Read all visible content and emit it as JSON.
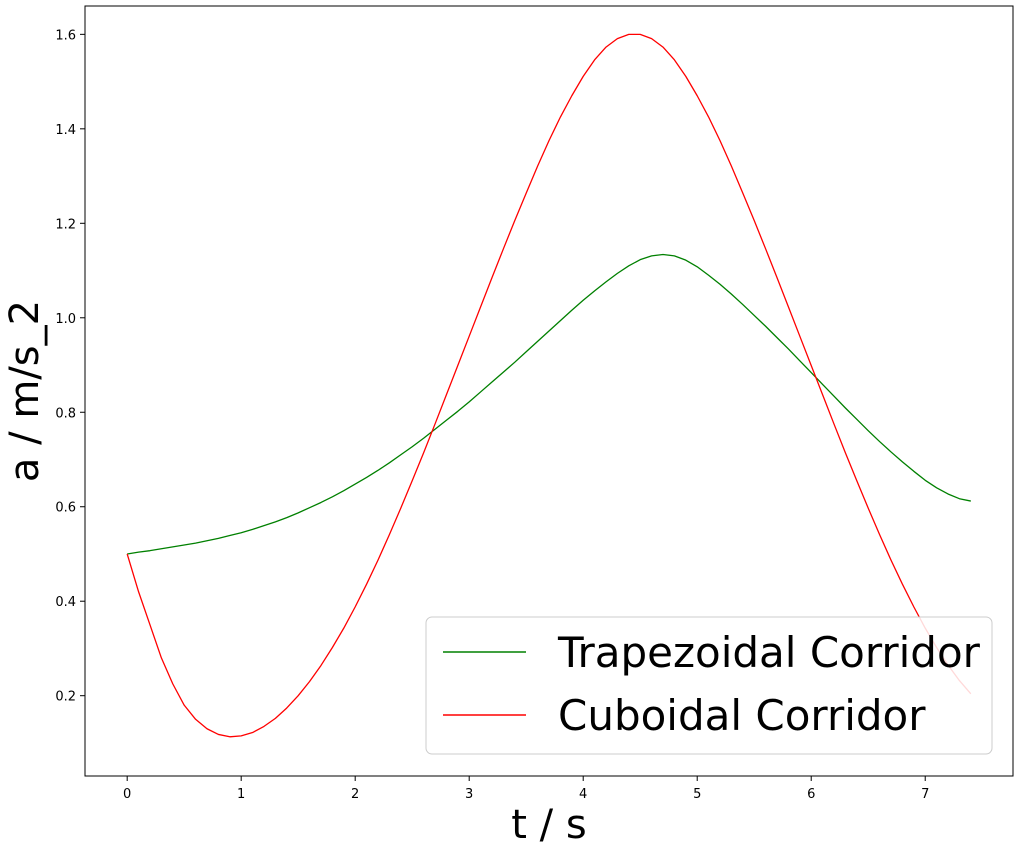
{
  "chart_data": {
    "type": "line",
    "title": "",
    "xlabel": "t / s",
    "ylabel": "a / m/s_2",
    "xlim": [
      -0.37,
      7.77
    ],
    "ylim": [
      0.03,
      1.66
    ],
    "x_ticks": [
      0,
      1,
      2,
      3,
      4,
      5,
      6,
      7
    ],
    "y_ticks": [
      0.2,
      0.4,
      0.6,
      0.8,
      1.0,
      1.2,
      1.4,
      1.6
    ],
    "y_tick_labels": [
      "0.2",
      "0.4",
      "0.6",
      "0.8",
      "1.0",
      "1.2",
      "1.4",
      "1.6"
    ],
    "grid": false,
    "legend": {
      "position": "lower-right"
    },
    "x": [
      0.0,
      0.1,
      0.2,
      0.3,
      0.4,
      0.5,
      0.6,
      0.7,
      0.8,
      0.9,
      1.0,
      1.1,
      1.2,
      1.3,
      1.4,
      1.5,
      1.6,
      1.7,
      1.8,
      1.9,
      2.0,
      2.1,
      2.2,
      2.3,
      2.4,
      2.5,
      2.6,
      2.7,
      2.8,
      2.9,
      3.0,
      3.1,
      3.2,
      3.3,
      3.4,
      3.5,
      3.6,
      3.7,
      3.8,
      3.9,
      4.0,
      4.1,
      4.2,
      4.3,
      4.4,
      4.5,
      4.6,
      4.7,
      4.8,
      4.9,
      5.0,
      5.1,
      5.2,
      5.3,
      5.4,
      5.5,
      5.6,
      5.7,
      5.8,
      5.9,
      6.0,
      6.1,
      6.2,
      6.3,
      6.4,
      6.5,
      6.6,
      6.7,
      6.8,
      6.9,
      7.0,
      7.1,
      7.2,
      7.3,
      7.4
    ],
    "series": [
      {
        "name": "Trapezoidal Corridor",
        "color": "#008000",
        "values": [
          0.5,
          0.504,
          0.507,
          0.511,
          0.515,
          0.519,
          0.523,
          0.528,
          0.533,
          0.539,
          0.545,
          0.552,
          0.56,
          0.568,
          0.577,
          0.587,
          0.598,
          0.609,
          0.621,
          0.634,
          0.648,
          0.662,
          0.677,
          0.693,
          0.71,
          0.727,
          0.745,
          0.764,
          0.783,
          0.802,
          0.822,
          0.843,
          0.864,
          0.885,
          0.906,
          0.928,
          0.95,
          0.972,
          0.994,
          1.016,
          1.037,
          1.057,
          1.076,
          1.094,
          1.11,
          1.123,
          1.131,
          1.134,
          1.131,
          1.122,
          1.108,
          1.09,
          1.071,
          1.05,
          1.028,
          1.005,
          0.982,
          0.958,
          0.934,
          0.909,
          0.884,
          0.859,
          0.834,
          0.809,
          0.785,
          0.761,
          0.738,
          0.716,
          0.695,
          0.675,
          0.656,
          0.64,
          0.627,
          0.617,
          0.612
        ]
      },
      {
        "name": "Cuboidal Corridor",
        "color": "#ff0000",
        "values": [
          0.5,
          0.42,
          0.35,
          0.28,
          0.225,
          0.18,
          0.15,
          0.13,
          0.118,
          0.113,
          0.115,
          0.122,
          0.135,
          0.152,
          0.174,
          0.2,
          0.23,
          0.264,
          0.302,
          0.343,
          0.388,
          0.436,
          0.487,
          0.541,
          0.597,
          0.655,
          0.714,
          0.775,
          0.837,
          0.899,
          0.961,
          1.023,
          1.085,
          1.146,
          1.206,
          1.264,
          1.321,
          1.375,
          1.425,
          1.47,
          1.511,
          1.546,
          1.573,
          1.591,
          1.6,
          1.6,
          1.591,
          1.573,
          1.546,
          1.511,
          1.47,
          1.425,
          1.375,
          1.321,
          1.264,
          1.206,
          1.146,
          1.085,
          1.023,
          0.961,
          0.899,
          0.837,
          0.775,
          0.714,
          0.655,
          0.597,
          0.541,
          0.487,
          0.436,
          0.388,
          0.343,
          0.302,
          0.265,
          0.232,
          0.204
        ]
      }
    ]
  }
}
